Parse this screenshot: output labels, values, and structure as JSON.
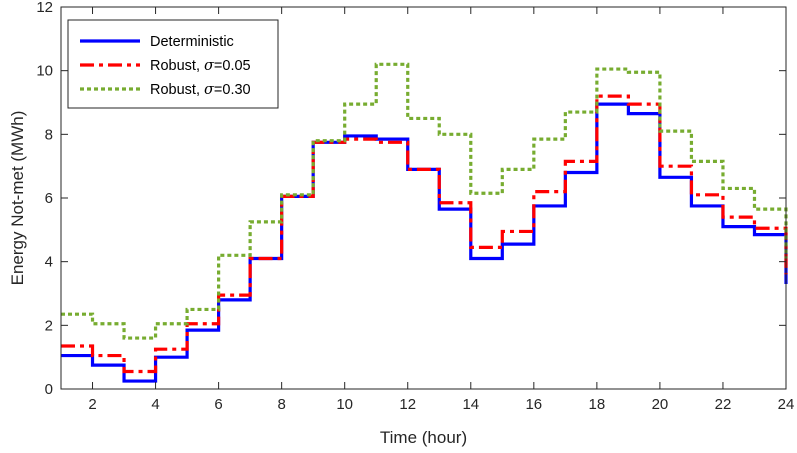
{
  "chart_data": {
    "type": "line",
    "step": true,
    "xlabel": "Time (hour)",
    "ylabel": "Energy Not-met (MWh)",
    "xlim": [
      1,
      24
    ],
    "ylim": [
      0,
      12
    ],
    "xticks": [
      2,
      4,
      6,
      8,
      10,
      12,
      14,
      16,
      18,
      20,
      22,
      24
    ],
    "yticks": [
      0,
      2,
      4,
      6,
      8,
      10,
      12
    ],
    "grid": false,
    "legend_position": "top-left",
    "x": [
      1,
      2,
      3,
      4,
      5,
      6,
      7,
      8,
      9,
      10,
      11,
      12,
      13,
      14,
      15,
      16,
      17,
      18,
      19,
      20,
      21,
      22,
      23,
      24
    ],
    "series": [
      {
        "name": "Deterministic",
        "name_prefix": "Deterministic",
        "name_sigma": "",
        "color": "#0000ff",
        "style": "solid",
        "values": [
          1.05,
          0.75,
          0.25,
          1.0,
          1.85,
          2.8,
          4.1,
          6.05,
          7.75,
          7.95,
          7.85,
          6.9,
          5.65,
          4.1,
          4.55,
          5.75,
          6.8,
          8.95,
          8.65,
          6.65,
          5.75,
          5.1,
          4.85,
          3.3
        ]
      },
      {
        "name": "Robust, σ=0.05",
        "name_prefix": "Robust, ",
        "name_sigma": "σ",
        "name_suffix": "=0.05",
        "color": "#ff0000",
        "style": "dashdot",
        "values": [
          1.35,
          1.05,
          0.55,
          1.25,
          2.05,
          2.95,
          4.1,
          6.05,
          7.75,
          7.85,
          7.75,
          6.9,
          5.85,
          4.45,
          4.95,
          6.2,
          7.15,
          9.2,
          8.95,
          7.0,
          6.1,
          5.4,
          5.05,
          3.6
        ]
      },
      {
        "name": "Robust, σ=0.30",
        "name_prefix": "Robust, ",
        "name_sigma": "σ",
        "name_suffix": "=0.30",
        "color": "#77ac30",
        "style": "dotted",
        "values": [
          2.35,
          2.05,
          1.6,
          2.05,
          2.5,
          4.2,
          5.25,
          6.1,
          7.8,
          8.95,
          10.2,
          8.5,
          8.0,
          6.15,
          6.9,
          7.85,
          8.7,
          10.05,
          9.95,
          8.1,
          7.15,
          6.3,
          5.65,
          4.1
        ]
      }
    ]
  }
}
